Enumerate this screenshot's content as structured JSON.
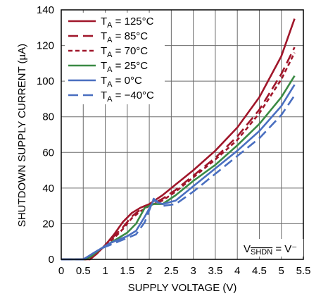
{
  "chart_data": {
    "type": "line",
    "title": "",
    "xlabel": "SUPPLY VOLTAGE (V)",
    "ylabel": "SHUTDOWN SUPPLY CURRENT (µA)",
    "xlim": [
      0,
      5.5
    ],
    "ylim": [
      0,
      140
    ],
    "x_ticks": [
      "0",
      "0.5",
      "1",
      "1.5",
      "2",
      "2.5",
      "3",
      "3.5",
      "4",
      "4.5",
      "5",
      "5.5"
    ],
    "y_ticks": [
      "0",
      "20",
      "40",
      "60",
      "80",
      "100",
      "120",
      "140"
    ],
    "grid": true,
    "legend_position": "top-left",
    "annotation": {
      "prefix": "V",
      "sub": "SHDN",
      "suffix": " = V⁻"
    },
    "series": [
      {
        "name": "T_A = 125°C",
        "label_main": "T",
        "label_sub": "A",
        "label_rest": " = 125°C",
        "color": "#a0162a",
        "dash": "solid",
        "x": [
          0,
          0.65,
          0.8,
          1.0,
          1.2,
          1.4,
          1.6,
          1.8,
          2.0,
          2.3,
          2.6,
          3.0,
          3.5,
          4.0,
          4.5,
          5.0,
          5.3
        ],
        "y": [
          0,
          0,
          3,
          8,
          14,
          21,
          26,
          29,
          31,
          36,
          42,
          50,
          61,
          74,
          91,
          114,
          135
        ]
      },
      {
        "name": "T_A = 85°C",
        "label_main": "T",
        "label_sub": "A",
        "label_rest": " = 85°C",
        "color": "#a0162a",
        "dash": "long",
        "x": [
          0,
          0.65,
          0.8,
          1.0,
          1.2,
          1.4,
          1.6,
          1.8,
          2.0,
          2.3,
          2.6,
          3.0,
          3.5,
          4.0,
          4.5,
          5.0,
          5.3
        ],
        "y": [
          0,
          0,
          3,
          8,
          13,
          18,
          24,
          28,
          30,
          34,
          39,
          47,
          57,
          69,
          84,
          104,
          119
        ]
      },
      {
        "name": "T_A = 70°C",
        "label_main": "T",
        "label_sub": "A",
        "label_rest": " = 70°C",
        "color": "#a0162a",
        "dash": "short",
        "x": [
          0,
          0.65,
          0.8,
          1.0,
          1.2,
          1.4,
          1.6,
          1.8,
          2.0,
          2.3,
          2.6,
          3.0,
          3.5,
          4.0,
          4.5,
          5.0,
          5.3
        ],
        "y": [
          0,
          0,
          3,
          8,
          12,
          17,
          23,
          27,
          30,
          33,
          38,
          46,
          56,
          67,
          82,
          101,
          116
        ]
      },
      {
        "name": "T_A = 25°C",
        "label_main": "T",
        "label_sub": "A",
        "label_rest": " = 25°C",
        "color": "#3a8a44",
        "dash": "solid",
        "x": [
          0,
          0.55,
          0.7,
          0.9,
          1.1,
          1.3,
          1.5,
          1.7,
          1.9,
          2.1,
          2.3,
          2.6,
          3.0,
          3.5,
          4.0,
          4.5,
          5.0,
          5.3
        ],
        "y": [
          0,
          0,
          2,
          6,
          9,
          12,
          15,
          20,
          29,
          31,
          31,
          36,
          44,
          53,
          64,
          76,
          91,
          103
        ]
      },
      {
        "name": "T_A = 0°C",
        "label_main": "T",
        "label_sub": "A",
        "label_rest": " = 0°C",
        "color": "#4a6fc0",
        "dash": "solid",
        "x": [
          0,
          0.5,
          0.7,
          0.9,
          1.1,
          1.3,
          1.5,
          1.7,
          1.9,
          2.1,
          2.3,
          2.6,
          3.0,
          3.5,
          4.0,
          4.5,
          5.0,
          5.3
        ],
        "y": [
          0,
          0,
          3,
          6,
          9,
          11,
          13,
          16,
          24,
          33,
          31,
          33,
          41,
          51,
          61,
          72,
          86,
          98
        ]
      },
      {
        "name": "T_A = −40°C",
        "label_main": "T",
        "label_sub": "A",
        "label_rest": " = −40°C",
        "color": "#4a6fc0",
        "dash": "long",
        "x": [
          0,
          0.5,
          0.7,
          0.9,
          1.1,
          1.3,
          1.5,
          1.7,
          1.9,
          2.1,
          2.3,
          2.6,
          3.0,
          3.5,
          4.0,
          4.5,
          5.0,
          5.3
        ],
        "y": [
          0,
          0,
          3,
          6,
          8,
          10,
          12,
          14,
          21,
          34,
          30,
          31,
          38,
          48,
          58,
          68,
          81,
          92
        ]
      }
    ]
  }
}
